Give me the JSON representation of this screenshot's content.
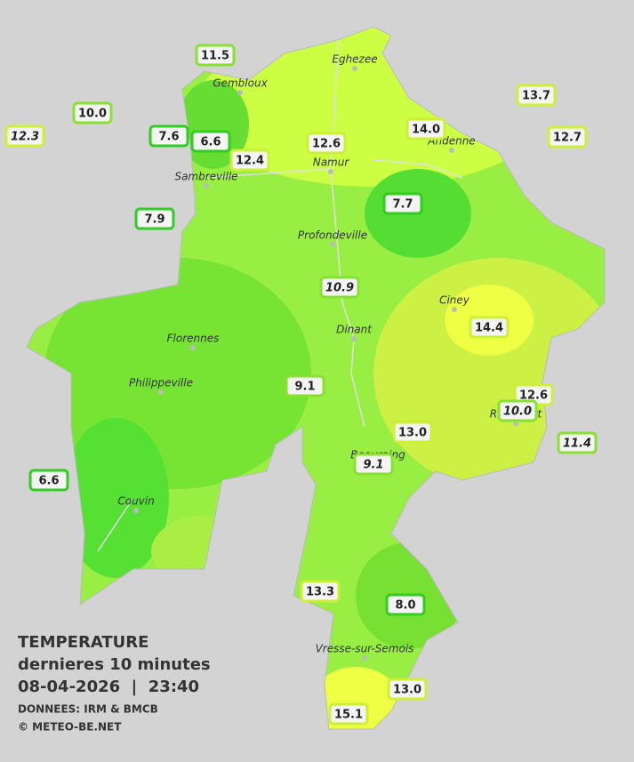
{
  "header": {
    "title": "TEMPERATURE",
    "subtitle": "dernieres 10 minutes",
    "datetime": "08-04-2026  |  23:40",
    "source": "DONNEES: IRM & BMCB",
    "copyright": "© METEO-BE.NET"
  },
  "towns": [
    "Eghezee",
    "Gembloux",
    "Andenne",
    "Namur",
    "Sambreville",
    "Profondeville",
    "Ciney",
    "Dinant",
    "Florennes",
    "Philippeville",
    "Rochefort",
    "Beauraing",
    "Couvin",
    "Vresse-sur-Semois"
  ],
  "stations": [
    "11.5",
    "10.0",
    "12.3",
    "7.6",
    "6.6",
    "12.4",
    "12.6",
    "14.0",
    "13.7",
    "12.7",
    "7.7",
    "7.9",
    "10.9",
    "14.4",
    "9.1",
    "12.6",
    "10.0",
    "13.0",
    "11.4",
    "9.1",
    "6.6",
    "13.3",
    "8.0",
    "13.0",
    "15.1"
  ]
}
